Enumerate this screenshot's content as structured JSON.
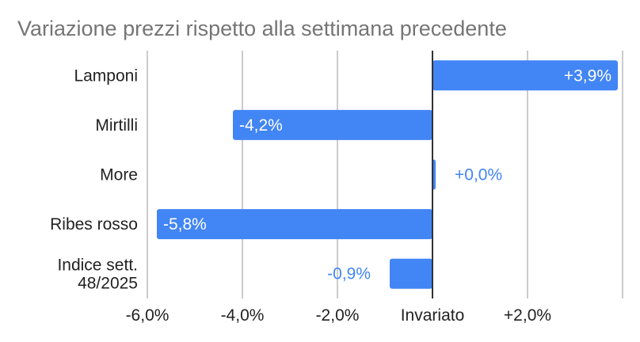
{
  "chart_data": {
    "type": "bar",
    "orientation": "horizontal",
    "title": "Variazione prezzi rispetto alla settimana precedente",
    "categories": [
      "Lamponi",
      "Mirtilli",
      "More",
      "Ribes rosso",
      "Indice sett. 48/2025"
    ],
    "values": [
      3.9,
      -4.2,
      0.0,
      -5.8,
      -0.9
    ],
    "value_labels": [
      "+3,9%",
      "-4,2%",
      "+0,0%",
      "-5,8%",
      "-0,9%"
    ],
    "x_ticks": [
      {
        "value": -6,
        "label": "-6,0%"
      },
      {
        "value": -4,
        "label": "-4,0%"
      },
      {
        "value": -2,
        "label": "-2,0%"
      },
      {
        "value": 0,
        "label": "Invariato"
      },
      {
        "value": 2,
        "label": "+2,0%"
      }
    ],
    "xlim": [
      -6,
      4
    ],
    "grid": true,
    "legend": "none",
    "bar_color": "#4285f4",
    "label_inside_color": "#ffffff",
    "label_outside_color": "#4285f4"
  }
}
